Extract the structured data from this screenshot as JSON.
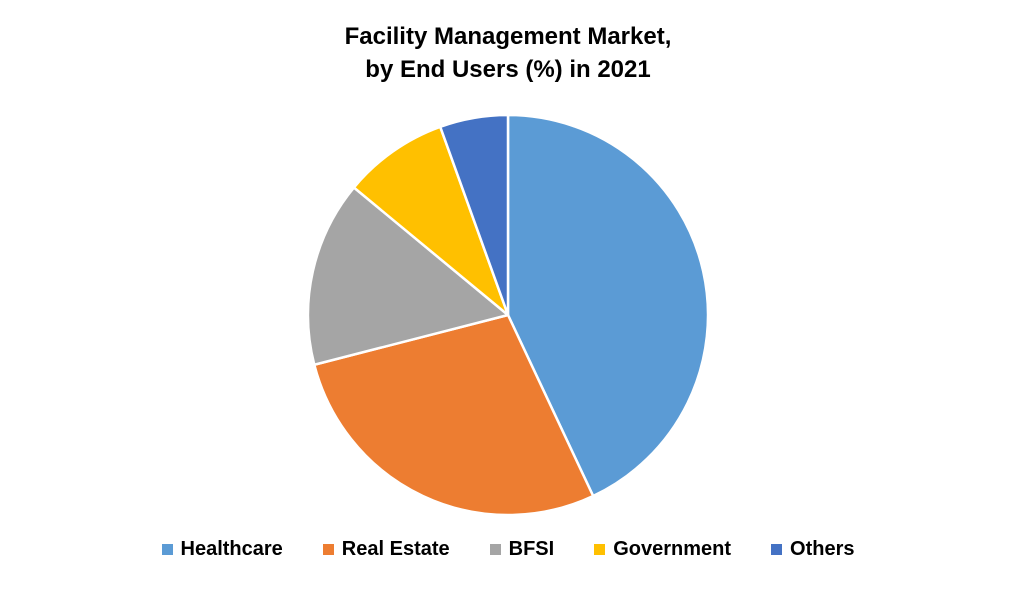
{
  "chart_data": {
    "type": "pie",
    "title_lines": [
      "Facility Management Market,",
      "by End Users (%) in 2021"
    ],
    "categories": [
      "Healthcare",
      "Real Estate",
      "BFSI",
      "Government",
      "Others"
    ],
    "values": [
      43,
      28,
      15,
      8.5,
      5.5
    ],
    "colors": [
      "#5B9BD5",
      "#ED7D31",
      "#A5A5A5",
      "#FFC000",
      "#4472C4"
    ],
    "start_angle_deg": 0,
    "direction": "clockwise",
    "legend_position": "bottom",
    "slice_border_color": "#FFFFFF"
  }
}
